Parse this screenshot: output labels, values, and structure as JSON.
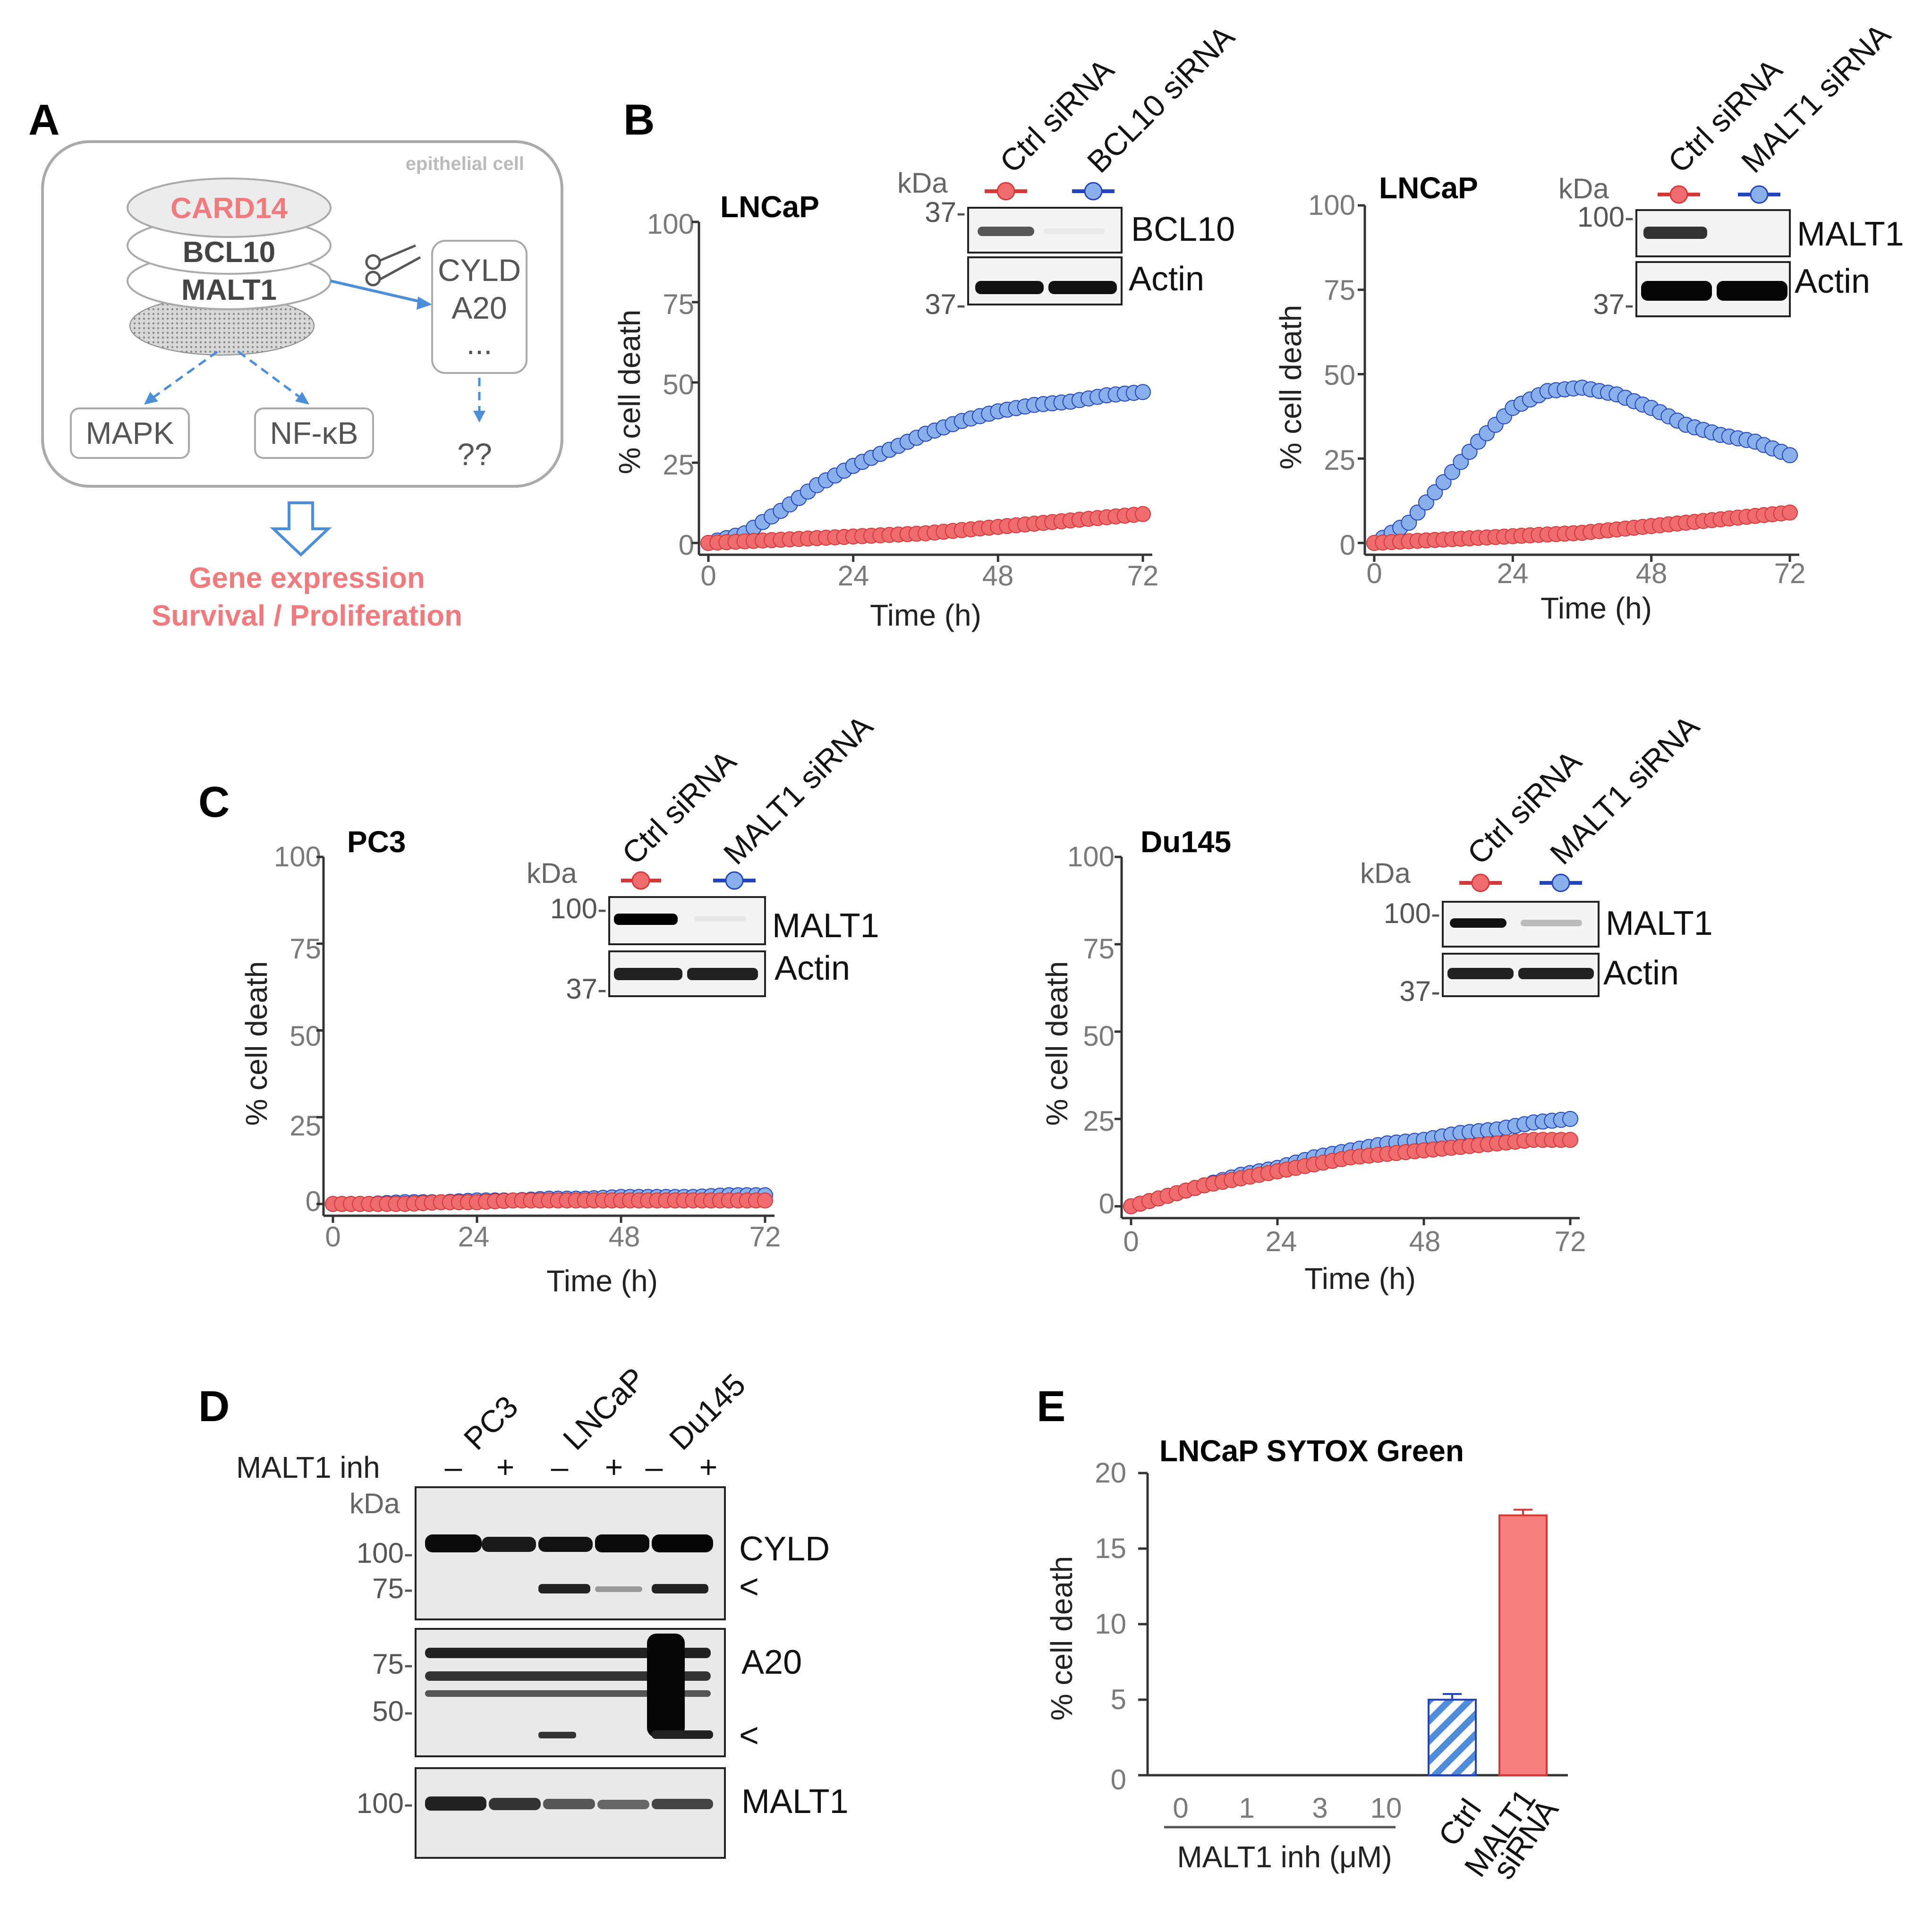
{
  "colors": {
    "ctrl": "#ee6b6e",
    "ctrl_dark": "#d23a3a",
    "knockdown": "#8ab0ec",
    "knockdown_dark": "#2345b8",
    "bar_ctrl_hatch": "#4f8ddb",
    "bar_malt1": "#f88080",
    "diagram_pink": "#ef7b7e",
    "diagram_blue": "#4d8ed8"
  },
  "panels": {
    "A": {
      "letter": "A",
      "cell_label": "epithelial cell",
      "complex": [
        "CARD14",
        "BCL10",
        "MALT1"
      ],
      "substrates": [
        "CYLD",
        "A20",
        "..."
      ],
      "outputs": [
        "MAPK",
        "NF-κB",
        "??"
      ],
      "result_lines": [
        "Gene expression",
        "Survival / Proliferation"
      ],
      "icons": [
        "scissors-icon",
        "hollow-down-arrow-icon"
      ]
    },
    "B": {
      "letter": "B",
      "left": {
        "title": "LNCaP",
        "ylabel": "% cell death",
        "xlabel": "Time (h)",
        "yticks": [
          "100",
          "75",
          "50",
          "25",
          "0"
        ],
        "xticks": [
          "0",
          "24",
          "48",
          "72"
        ],
        "blot": {
          "kda": "kDa",
          "lanes": [
            "Ctrl siRNA",
            "BCL10 siRNA"
          ],
          "bands": [
            "BCL10",
            "Actin"
          ],
          "markers": [
            "37-",
            "37-"
          ]
        }
      },
      "right": {
        "title": "LNCaP",
        "ylabel": "% cell death",
        "xlabel": "Time (h)",
        "yticks": [
          "100",
          "75",
          "50",
          "25",
          "0"
        ],
        "xticks": [
          "0",
          "24",
          "48",
          "72"
        ],
        "blot": {
          "kda": "kDa",
          "lanes": [
            "Ctrl siRNA",
            "MALT1 siRNA"
          ],
          "bands": [
            "MALT1",
            "Actin"
          ],
          "markers": [
            "100-",
            "37-"
          ]
        }
      }
    },
    "C": {
      "letter": "C",
      "left": {
        "title": "PC3",
        "ylabel": "% cell death",
        "xlabel": "Time (h)",
        "yticks": [
          "100",
          "75",
          "50",
          "25",
          "0"
        ],
        "xticks": [
          "0",
          "24",
          "48",
          "72"
        ],
        "blot": {
          "kda": "kDa",
          "lanes": [
            "Ctrl siRNA",
            "MALT1 siRNA"
          ],
          "bands": [
            "MALT1",
            "Actin"
          ],
          "markers": [
            "100-",
            "37-"
          ]
        }
      },
      "right": {
        "title": "Du145",
        "ylabel": "% cell death",
        "xlabel": "Time (h)",
        "yticks": [
          "100",
          "75",
          "50",
          "25",
          "0"
        ],
        "xticks": [
          "0",
          "24",
          "48",
          "72"
        ],
        "blot": {
          "kda": "kDa",
          "lanes": [
            "Ctrl siRNA",
            "MALT1 siRNA"
          ],
          "bands": [
            "MALT1",
            "Actin"
          ],
          "markers": [
            "100-",
            "37-"
          ]
        }
      }
    },
    "D": {
      "letter": "D",
      "cell_lines": [
        "PC3",
        "LNCaP",
        "Du145"
      ],
      "treatment_label": "MALT1 inh",
      "treatment_signs": [
        "–",
        "+",
        "–",
        "+",
        "–",
        "+"
      ],
      "kda": "kDa",
      "blots": [
        {
          "label": "CYLD",
          "markers": [
            "100-",
            "75-"
          ],
          "cleavage_mark": "<"
        },
        {
          "label": "A20",
          "markers": [
            "75-",
            "50-"
          ],
          "cleavage_mark": "<"
        },
        {
          "label": "MALT1",
          "markers": [
            "100-"
          ]
        }
      ]
    },
    "E": {
      "letter": "E",
      "title": "LNCaP SYTOX Green",
      "ylabel": "% cell death",
      "yticks": [
        "20",
        "15",
        "10",
        "5",
        "0"
      ],
      "dose_ticks": [
        "0",
        "1",
        "3",
        "10"
      ],
      "dose_label": "MALT1 inh (μM)",
      "bar_labels": [
        "Ctrl",
        "MALT1",
        "siRNA"
      ]
    }
  },
  "chart_data": [
    {
      "panel": "B-left",
      "type": "scatter",
      "title": "LNCaP",
      "xlabel": "Time (h)",
      "ylabel": "% cell death",
      "xlim": [
        0,
        72
      ],
      "ylim": [
        0,
        100
      ],
      "x": [
        0,
        6,
        12,
        18,
        24,
        30,
        36,
        42,
        48,
        54,
        60,
        66,
        72
      ],
      "series": [
        {
          "name": "Ctrl siRNA",
          "values": [
            0,
            0.5,
            1,
            1.5,
            2,
            2.5,
            3,
            4,
            5,
            6,
            7,
            8,
            9
          ]
        },
        {
          "name": "BCL10 siRNA",
          "values": [
            0,
            3,
            10,
            18,
            24,
            29,
            34,
            38,
            41,
            43,
            44,
            46,
            47
          ]
        }
      ]
    },
    {
      "panel": "B-right",
      "type": "scatter",
      "title": "LNCaP",
      "xlabel": "Time (h)",
      "ylabel": "% cell death",
      "xlim": [
        0,
        72
      ],
      "ylim": [
        0,
        100
      ],
      "x": [
        0,
        6,
        12,
        18,
        24,
        30,
        36,
        42,
        48,
        54,
        60,
        66,
        72
      ],
      "series": [
        {
          "name": "Ctrl siRNA",
          "values": [
            0,
            0.5,
            1,
            1.5,
            2,
            2.5,
            3,
            4,
            5,
            6,
            7,
            8,
            9
          ]
        },
        {
          "name": "MALT1 siRNA",
          "values": [
            0,
            6,
            18,
            30,
            40,
            45,
            46,
            44,
            40,
            35,
            32,
            30,
            26
          ]
        }
      ]
    },
    {
      "panel": "C-left",
      "type": "scatter",
      "title": "PC3",
      "xlabel": "Time (h)",
      "ylabel": "% cell death",
      "xlim": [
        0,
        72
      ],
      "ylim": [
        0,
        100
      ],
      "x": [
        0,
        6,
        12,
        18,
        24,
        30,
        36,
        42,
        48,
        54,
        60,
        66,
        72
      ],
      "series": [
        {
          "name": "Ctrl siRNA",
          "values": [
            0,
            0,
            0,
            0.5,
            0.5,
            1,
            1,
            1,
            1,
            1,
            1,
            1,
            1
          ]
        },
        {
          "name": "MALT1 siRNA",
          "values": [
            0,
            0,
            0.5,
            0.5,
            1,
            1,
            1.5,
            1.5,
            2,
            2,
            2,
            2.5,
            2.5
          ]
        }
      ]
    },
    {
      "panel": "C-right",
      "type": "scatter",
      "title": "Du145",
      "xlabel": "Time (h)",
      "ylabel": "% cell death",
      "xlim": [
        0,
        72
      ],
      "ylim": [
        0,
        100
      ],
      "x": [
        0,
        6,
        12,
        18,
        24,
        30,
        36,
        42,
        48,
        54,
        60,
        66,
        72
      ],
      "series": [
        {
          "name": "Ctrl siRNA",
          "values": [
            0,
            3,
            6,
            8,
            10,
            12,
            14,
            15,
            16,
            17,
            18,
            19,
            19
          ]
        },
        {
          "name": "MALT1 siRNA",
          "values": [
            0,
            3,
            6,
            9,
            11,
            14,
            16,
            18,
            19,
            21,
            22,
            24,
            25
          ]
        }
      ]
    },
    {
      "panel": "E",
      "type": "bar",
      "title": "LNCaP SYTOX Green",
      "ylabel": "% cell death",
      "ylim": [
        0,
        20
      ],
      "categories": [
        "0",
        "1",
        "3",
        "10",
        "Ctrl",
        "MALT1 siRNA"
      ],
      "values": [
        null,
        null,
        null,
        null,
        5,
        17.2
      ]
    }
  ]
}
